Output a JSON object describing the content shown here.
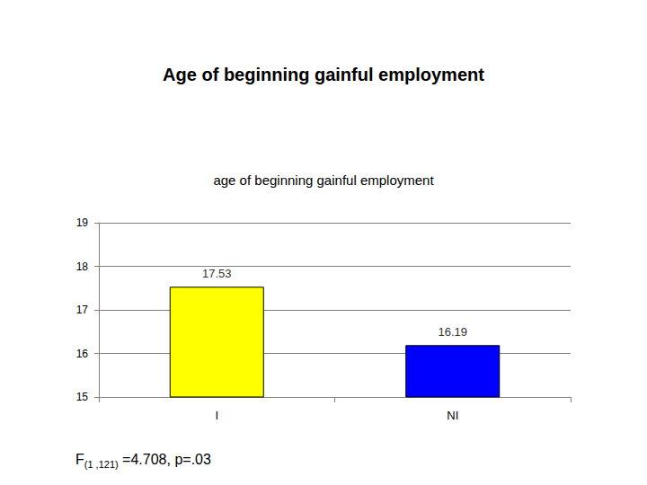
{
  "chart_data": {
    "type": "bar",
    "title": "Age of beginning gainful employment",
    "subtitle": "age of beginning gainful employment",
    "categories": [
      "I",
      "NI"
    ],
    "values": [
      17.53,
      16.19
    ],
    "colors": [
      "#ffff00",
      "#0000ff"
    ],
    "ylim": [
      15,
      19
    ],
    "yticks": [
      15,
      16,
      17,
      18,
      19
    ],
    "grid": true,
    "data_labels": true,
    "annotation": {
      "text": "F",
      "subscript": "(1 ,121)",
      "rest": "=4.708, p=.03"
    }
  }
}
